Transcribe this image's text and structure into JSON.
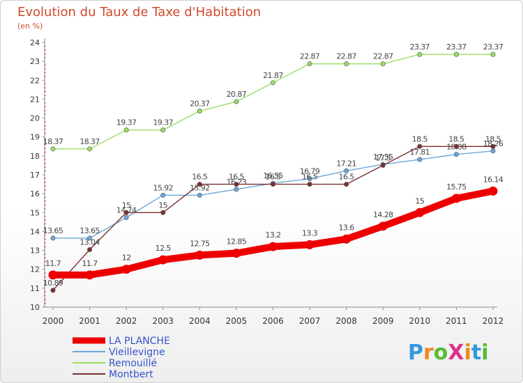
{
  "title": "Evolution du Taux de Taxe d'Habitation",
  "subtitle": "(en %)",
  "logo": "ProXiti",
  "chart_data": {
    "type": "line",
    "x": [
      "2000",
      "2001",
      "2002",
      "2003",
      "2004",
      "2005",
      "2006",
      "2007",
      "2008",
      "2009",
      "2010",
      "2011",
      "2012"
    ],
    "ylim": [
      10,
      24
    ],
    "yticks": [
      10,
      11,
      12,
      13,
      14,
      15,
      16,
      17,
      18,
      19,
      20,
      21,
      22,
      23,
      24
    ],
    "grid": false,
    "legend_position": "bottom-left",
    "series": [
      {
        "name": "Remouillé",
        "color": "#99dd66",
        "values": [
          18.37,
          18.37,
          19.37,
          19.37,
          20.37,
          20.87,
          21.87,
          22.87,
          22.87,
          22.87,
          23.37,
          23.37,
          23.37
        ],
        "labels": [
          "18.37",
          "18.37",
          "19.37",
          "19.37",
          "20.37",
          "20.87",
          "21.87",
          "22.87",
          "22.87",
          "22.87",
          "23.37",
          "23.37",
          "23.37"
        ]
      },
      {
        "name": "Vieillevigne",
        "color": "#6aa6d8",
        "values": [
          13.65,
          13.65,
          14.74,
          15.92,
          15.92,
          16.23,
          16.55,
          16.79,
          17.21,
          17.55,
          17.81,
          18.08,
          18.26
        ],
        "labels": [
          "13.65",
          "13.65",
          "14.74",
          "15.92",
          "15.92",
          "16.23",
          "16.55",
          "16.79",
          "17.21",
          "17.55",
          "17.81",
          "18.08",
          "18.26"
        ]
      },
      {
        "name": "Montbert",
        "color": "#7a3030",
        "values": [
          10.89,
          13.04,
          15,
          15,
          16.5,
          16.5,
          16.5,
          16.5,
          16.5,
          17.5,
          18.5,
          18.5,
          18.5
        ],
        "labels": [
          "10.89",
          "13.04",
          "15",
          "15",
          "16.5",
          "16.5",
          "16.5",
          "16.5",
          "16.5",
          "17.5",
          "18.5",
          "18.5",
          "18.5"
        ]
      },
      {
        "name": "LA PLANCHE",
        "color": "#ee0000",
        "values": [
          11.7,
          11.7,
          12,
          12.5,
          12.75,
          12.85,
          13.2,
          13.3,
          13.6,
          14.28,
          15,
          15.75,
          16.14
        ],
        "labels": [
          "11.7",
          "11.7",
          "12",
          "12.5",
          "12.75",
          "12.85",
          "13.2",
          "13.3",
          "13.6",
          "14.28",
          "15",
          "15.75",
          "16.14"
        ]
      }
    ],
    "legend": [
      {
        "name": "LA PLANCHE",
        "color": "#ee0000"
      },
      {
        "name": "Vieillevigne",
        "color": "#6aa6d8"
      },
      {
        "name": "Remouillé",
        "color": "#99dd66"
      },
      {
        "name": "Montbert",
        "color": "#7a3030"
      }
    ]
  }
}
